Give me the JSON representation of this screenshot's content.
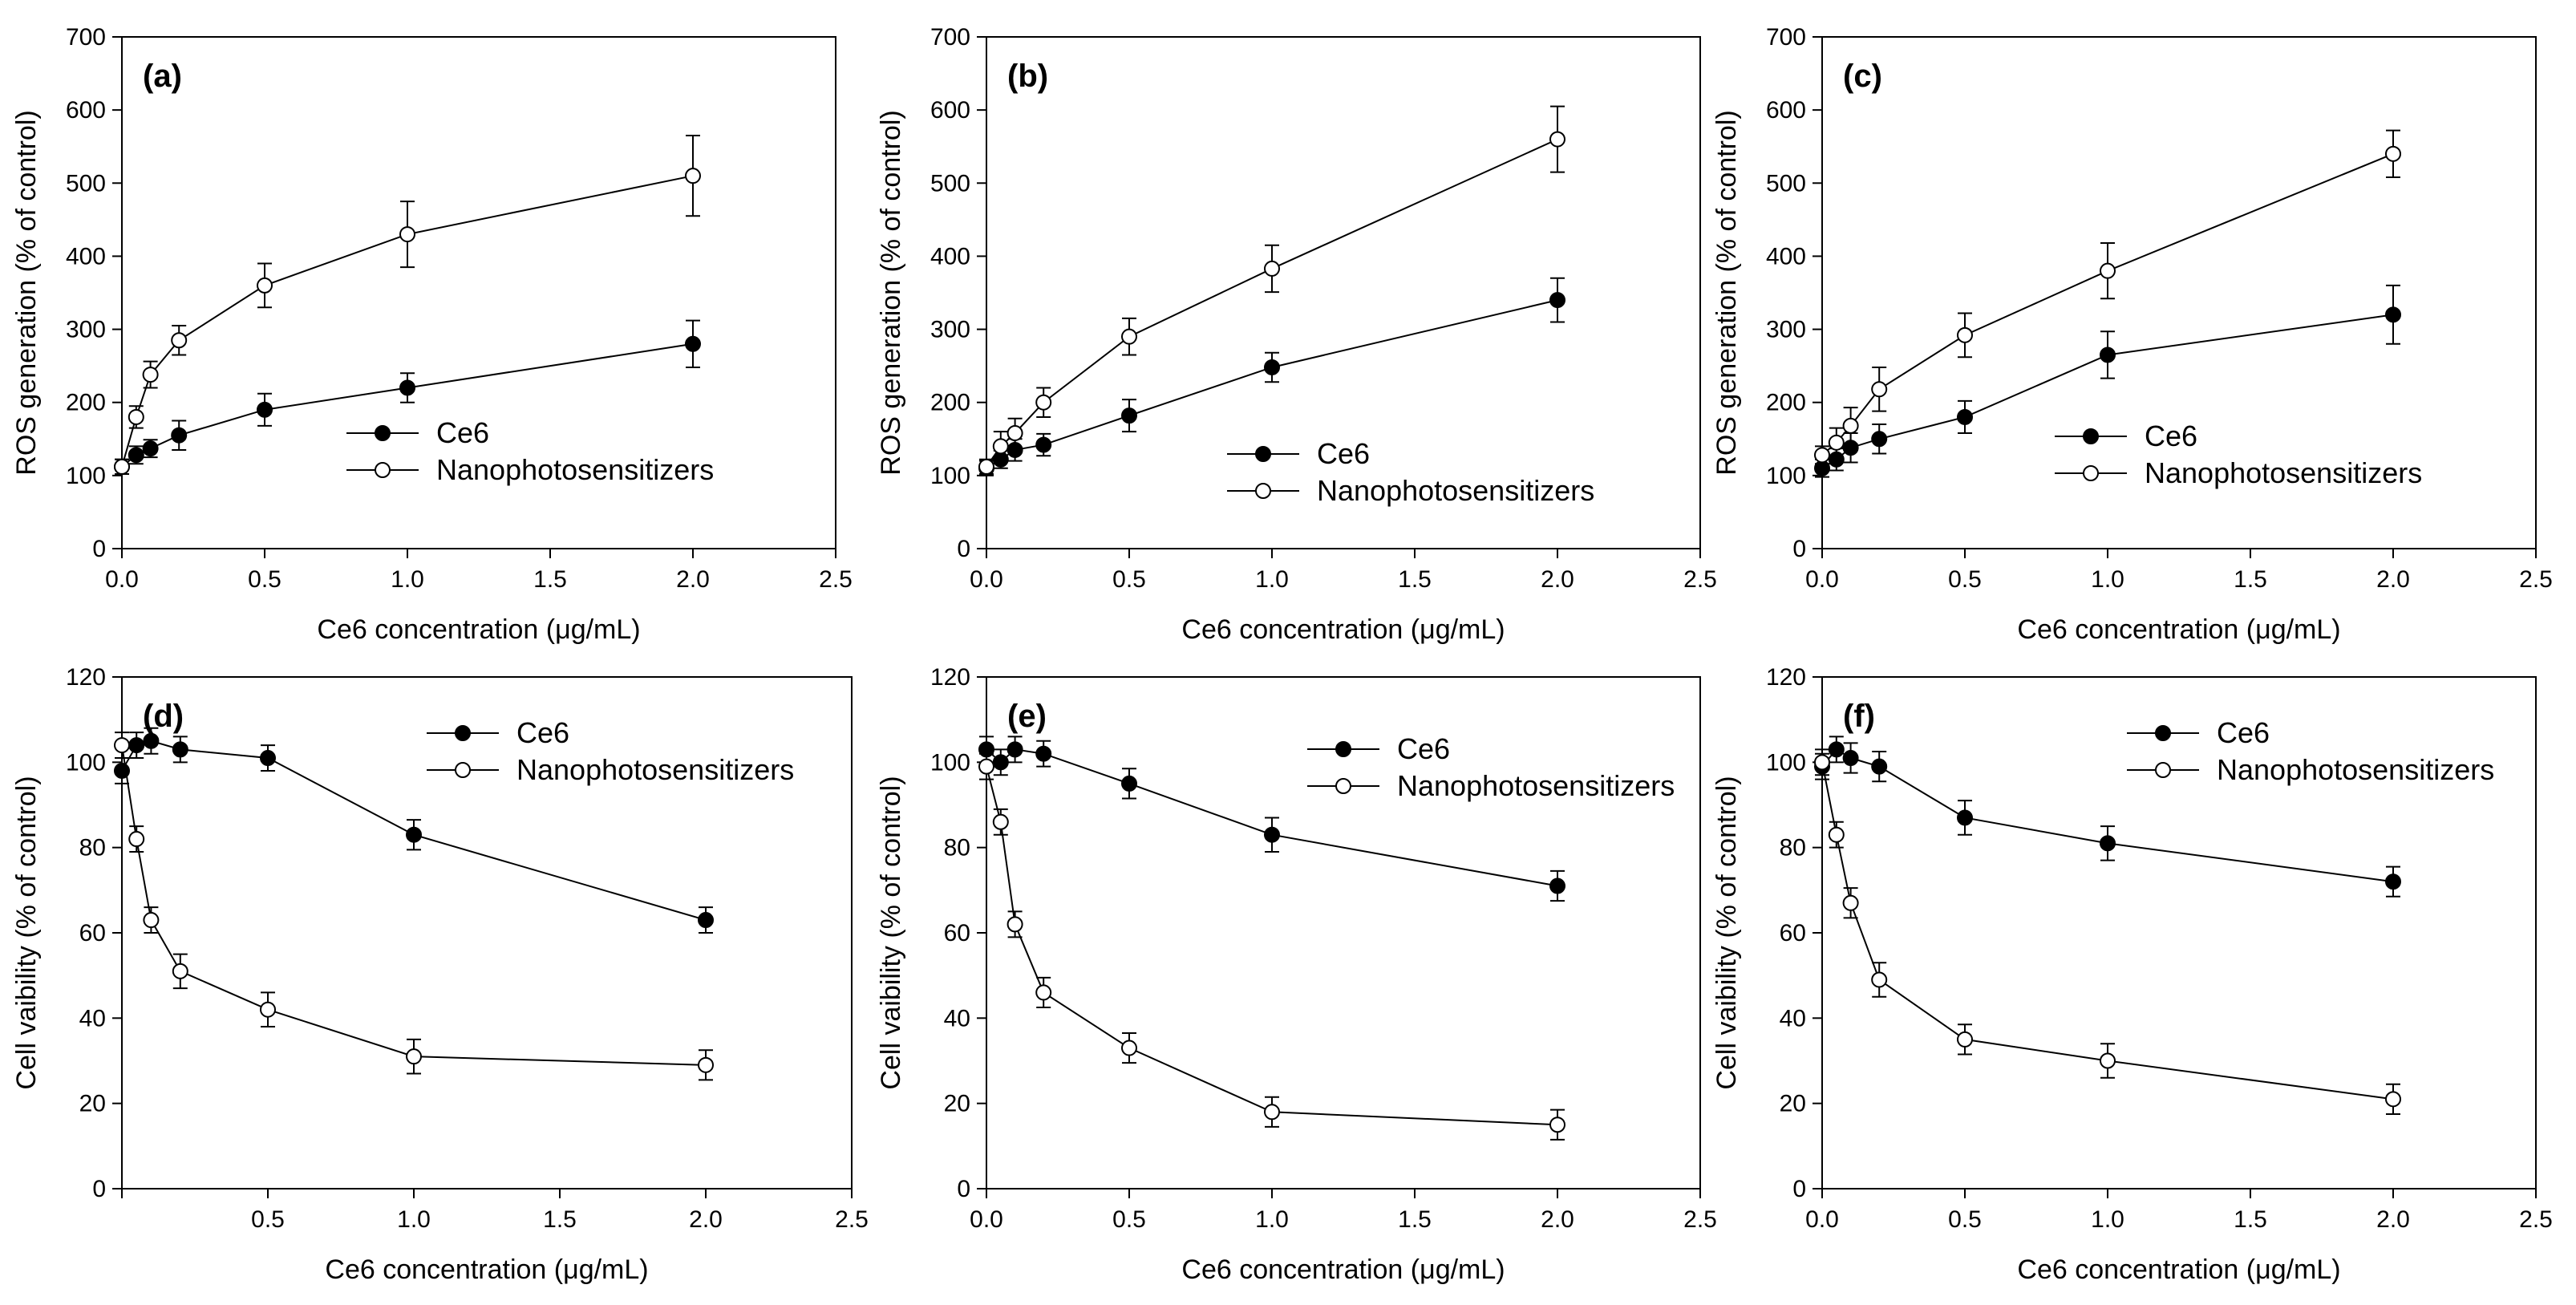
{
  "chart_data": [
    {
      "panel": "(a)",
      "type": "line",
      "xlabel": "Ce6 concentration (μg/mL)",
      "ylabel": "ROS generation (% of control)",
      "xlim": [
        0,
        2.5
      ],
      "ylim": [
        0,
        700
      ],
      "xticks": [
        "0.0",
        "0.5",
        "1.0",
        "1.5",
        "2.0",
        "2.5"
      ],
      "yticks": [
        "0",
        "100",
        "200",
        "300",
        "400",
        "500",
        "600",
        "700"
      ],
      "legend_position": "center-right",
      "series": [
        {
          "name": "Ce6",
          "marker": "filled",
          "x": [
            0,
            0.05,
            0.1,
            0.2,
            0.5,
            1.0,
            2.0
          ],
          "y": [
            112,
            128,
            137,
            155,
            190,
            220,
            280
          ],
          "err": [
            10,
            12,
            12,
            20,
            22,
            20,
            32
          ]
        },
        {
          "name": "Nanophotosensitizers",
          "marker": "open",
          "x": [
            0,
            0.05,
            0.1,
            0.2,
            0.5,
            1.0,
            2.0
          ],
          "y": [
            112,
            180,
            238,
            285,
            360,
            430,
            510
          ],
          "err": [
            10,
            15,
            18,
            20,
            30,
            45,
            55
          ]
        }
      ]
    },
    {
      "panel": "(b)",
      "type": "line",
      "xlabel": "Ce6 concentration (μg/mL)",
      "ylabel": "ROS generation (% of control)",
      "xlim": [
        0,
        2.5
      ],
      "ylim": [
        0,
        700
      ],
      "xticks": [
        "0.0",
        "0.5",
        "1.0",
        "1.5",
        "2.0",
        "2.5"
      ],
      "yticks": [
        "0",
        "100",
        "200",
        "300",
        "400",
        "500",
        "600",
        "700"
      ],
      "legend_position": "center-right",
      "series": [
        {
          "name": "Ce6",
          "marker": "filled",
          "x": [
            0,
            0.05,
            0.1,
            0.2,
            0.5,
            1.0,
            2.0
          ],
          "y": [
            110,
            122,
            135,
            142,
            182,
            248,
            340
          ],
          "err": [
            10,
            12,
            15,
            15,
            22,
            20,
            30
          ]
        },
        {
          "name": "Nanophotosensitizers",
          "marker": "open",
          "x": [
            0,
            0.05,
            0.1,
            0.2,
            0.5,
            1.0,
            2.0
          ],
          "y": [
            112,
            140,
            158,
            200,
            290,
            383,
            560
          ],
          "err": [
            10,
            20,
            20,
            20,
            25,
            32,
            45
          ]
        }
      ]
    },
    {
      "panel": "(c)",
      "type": "line",
      "xlabel": "Ce6 concentration (μg/mL)",
      "ylabel": "ROS generation (% of control)",
      "xlim": [
        0,
        2.5
      ],
      "ylim": [
        0,
        700
      ],
      "xticks": [
        "0.0",
        "0.5",
        "1.0",
        "1.5",
        "2.0",
        "2.5"
      ],
      "yticks": [
        "0",
        "100",
        "200",
        "300",
        "400",
        "500",
        "600",
        "700"
      ],
      "legend_position": "center-right",
      "series": [
        {
          "name": "Ce6",
          "marker": "filled",
          "x": [
            0,
            0.05,
            0.1,
            0.2,
            0.5,
            1.0,
            2.0
          ],
          "y": [
            110,
            122,
            138,
            150,
            180,
            265,
            320
          ],
          "err": [
            12,
            15,
            20,
            20,
            22,
            32,
            40
          ]
        },
        {
          "name": "Nanophotosensitizers",
          "marker": "open",
          "x": [
            0,
            0.05,
            0.1,
            0.2,
            0.5,
            1.0,
            2.0
          ],
          "y": [
            128,
            145,
            168,
            218,
            292,
            380,
            540
          ],
          "err": [
            12,
            20,
            25,
            30,
            30,
            38,
            32
          ]
        }
      ]
    },
    {
      "panel": "(d)",
      "type": "line",
      "xlabel": "Ce6 concentration (μg/mL)",
      "ylabel": "Cell vaibility (% of control)",
      "xlim": [
        0,
        2.5
      ],
      "ylim": [
        0,
        120
      ],
      "xticks": [
        "",
        "0.5",
        "1.0",
        "1.5",
        "2.0",
        "2.5"
      ],
      "yticks": [
        "0",
        "20",
        "40",
        "60",
        "80",
        "100",
        "120"
      ],
      "legend_position": "top-right",
      "series": [
        {
          "name": "Ce6",
          "marker": "filled",
          "x": [
            0,
            0.05,
            0.1,
            0.2,
            0.5,
            1.0,
            2.0
          ],
          "y": [
            98,
            104,
            105,
            103,
            101,
            83,
            63
          ],
          "err": [
            3,
            3,
            3,
            3,
            3,
            3.5,
            3
          ]
        },
        {
          "name": "Nanophotosensitizers",
          "marker": "open",
          "x": [
            0,
            0.05,
            0.1,
            0.2,
            0.5,
            1.0,
            2.0
          ],
          "y": [
            104,
            82,
            63,
            51,
            42,
            31,
            29
          ],
          "err": [
            3,
            3,
            3,
            4,
            4,
            4,
            3.5
          ]
        }
      ]
    },
    {
      "panel": "(e)",
      "type": "line",
      "xlabel": "Ce6 concentration (μg/mL)",
      "ylabel": "Cell vaibility (% of control)",
      "xlim": [
        0,
        2.5
      ],
      "ylim": [
        0,
        120
      ],
      "xticks": [
        "0.0",
        "0.5",
        "1.0",
        "1.5",
        "2.0",
        "2.5"
      ],
      "yticks": [
        "0",
        "20",
        "40",
        "60",
        "80",
        "100",
        "120"
      ],
      "legend_position": "top-right",
      "series": [
        {
          "name": "Ce6",
          "marker": "filled",
          "x": [
            0,
            0.05,
            0.1,
            0.2,
            0.5,
            1.0,
            2.0
          ],
          "y": [
            103,
            100,
            103,
            102,
            95,
            83,
            71
          ],
          "err": [
            3,
            3,
            3,
            3,
            3.5,
            4,
            3.5
          ]
        },
        {
          "name": "Nanophotosensitizers",
          "marker": "open",
          "x": [
            0,
            0.05,
            0.1,
            0.2,
            0.5,
            1.0,
            2.0
          ],
          "y": [
            99,
            86,
            62,
            46,
            33,
            18,
            15
          ],
          "err": [
            3,
            3,
            3,
            3.5,
            3.5,
            3.5,
            3.5
          ]
        }
      ]
    },
    {
      "panel": "(f)",
      "type": "line",
      "xlabel": "Ce6 concentration (μg/mL)",
      "ylabel": "Cell vaibility (% of control)",
      "xlim": [
        0,
        2.5
      ],
      "ylim": [
        0,
        120
      ],
      "xticks": [
        "0.0",
        "0.5",
        "1.0",
        "1.5",
        "2.0",
        "2.5"
      ],
      "yticks": [
        "0",
        "20",
        "40",
        "60",
        "80",
        "100",
        "120"
      ],
      "legend_position": "top-right",
      "series": [
        {
          "name": "Ce6",
          "marker": "filled",
          "x": [
            0,
            0.05,
            0.1,
            0.2,
            0.5,
            1.0,
            2.0
          ],
          "y": [
            99,
            103,
            101,
            99,
            87,
            81,
            72
          ],
          "err": [
            3,
            3,
            3.5,
            3.5,
            4,
            4,
            3.5
          ]
        },
        {
          "name": "Nanophotosensitizers",
          "marker": "open",
          "x": [
            0,
            0.05,
            0.1,
            0.2,
            0.5,
            1.0,
            2.0
          ],
          "y": [
            100,
            83,
            67,
            49,
            35,
            30,
            21
          ],
          "err": [
            3,
            3,
            3.5,
            4,
            3.5,
            4,
            3.5
          ]
        }
      ]
    }
  ]
}
